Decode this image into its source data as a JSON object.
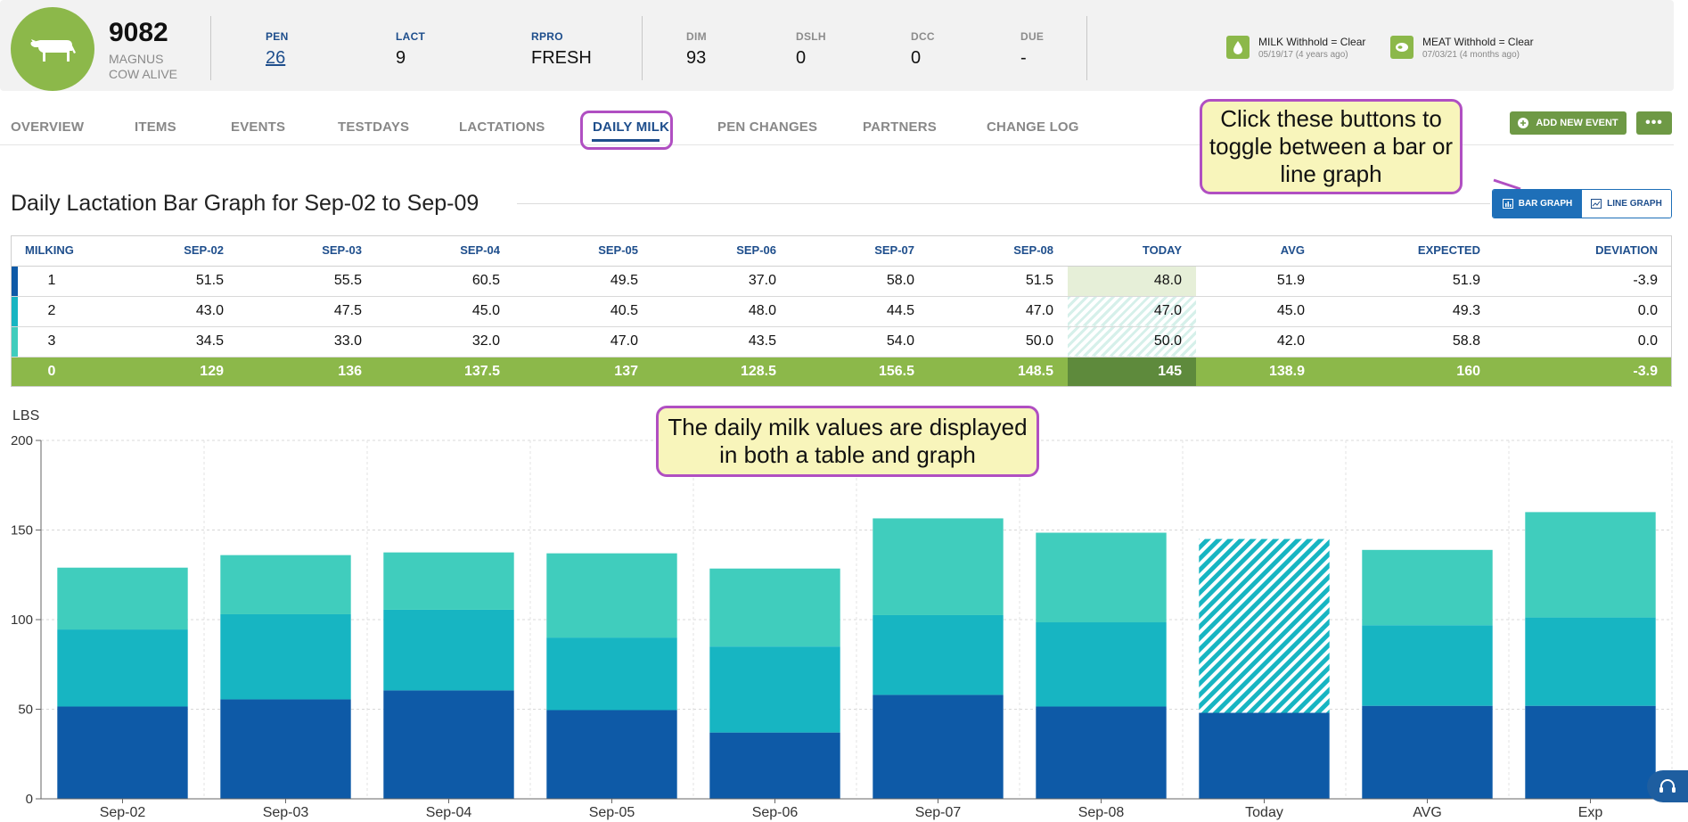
{
  "cow": {
    "id": "9082",
    "name": "MAGNUS",
    "status": "COW ALIVE",
    "icon": "cow-icon"
  },
  "stats": {
    "pen": {
      "label": "PEN",
      "value": "26"
    },
    "lact": {
      "label": "LACT",
      "value": "9"
    },
    "rpro": {
      "label": "RPRO",
      "value": "FRESH"
    },
    "dim": {
      "label": "DIM",
      "value": "93"
    },
    "dslh": {
      "label": "DSLH",
      "value": "0"
    },
    "dcc": {
      "label": "DCC",
      "value": "0"
    },
    "due": {
      "label": "DUE",
      "value": "-"
    }
  },
  "withhold": {
    "milk": {
      "title": "MILK Withhold = Clear",
      "sub": "05/19/17 (4 years ago)",
      "icon": "milk-drop-icon"
    },
    "meat": {
      "title": "MEAT Withhold = Clear",
      "sub": "07/03/21 (4 months ago)",
      "icon": "meat-icon"
    }
  },
  "tabs": [
    "OVERVIEW",
    "ITEMS",
    "EVENTS",
    "TESTDAYS",
    "LACTATIONS",
    "DAILY MILK",
    "PEN CHANGES",
    "PARTNERS",
    "CHANGE LOG"
  ],
  "active_tab": "DAILY MILK",
  "actions": {
    "add_event": "ADD NEW EVENT",
    "more": "•••"
  },
  "callouts": {
    "toggle": "Click these buttons to toggle between a bar or line graph",
    "table": "The daily milk values are displayed in both a table and graph"
  },
  "section_title": "Daily Lactation Bar Graph for Sep-02 to Sep-09",
  "toggle": {
    "bar": "BAR GRAPH",
    "line": "LINE GRAPH",
    "selected": "bar"
  },
  "table": {
    "headers": [
      "MILKING",
      "SEP-02",
      "SEP-03",
      "SEP-04",
      "SEP-05",
      "SEP-06",
      "SEP-07",
      "SEP-08",
      "TODAY",
      "AVG",
      "EXPECTED",
      "DEVIATION"
    ],
    "rows": [
      [
        "1",
        "51.5",
        "55.5",
        "60.5",
        "49.5",
        "37.0",
        "58.0",
        "51.5",
        "48.0",
        "51.9",
        "51.9",
        "-3.9"
      ],
      [
        "2",
        "43.0",
        "47.5",
        "45.0",
        "40.5",
        "48.0",
        "44.5",
        "47.0",
        "47.0",
        "45.0",
        "49.3",
        "0.0"
      ],
      [
        "3",
        "34.5",
        "33.0",
        "32.0",
        "47.0",
        "43.5",
        "54.0",
        "50.0",
        "50.0",
        "42.0",
        "58.8",
        "0.0"
      ]
    ],
    "total": [
      "0",
      "129",
      "136",
      "137.5",
      "137",
      "128.5",
      "156.5",
      "148.5",
      "145",
      "138.9",
      "160",
      "-3.9"
    ],
    "row_colors": [
      "#0e5aa7",
      "#17b5c2",
      "#40cdbd"
    ]
  },
  "chart_data": {
    "type": "bar",
    "stacked": true,
    "ylabel": "LBS",
    "ylim": [
      0,
      200
    ],
    "yticks": [
      0,
      50,
      100,
      150,
      200
    ],
    "grid": true,
    "categories": [
      "Sep-02",
      "Sep-03",
      "Sep-04",
      "Sep-05",
      "Sep-06",
      "Sep-07",
      "Sep-08",
      "Today",
      "AVG",
      "Exp"
    ],
    "series": [
      {
        "values": [
          51.5,
          55.5,
          60.5,
          49.5,
          37.0,
          58.0,
          51.5,
          48.0,
          51.9,
          51.9
        ],
        "color": "#0e5aa7"
      },
      {
        "values": [
          43.0,
          47.5,
          45.0,
          40.5,
          48.0,
          44.5,
          47.0,
          47.0,
          45.0,
          49.3
        ],
        "color": "#17b5c2"
      },
      {
        "values": [
          34.5,
          33.0,
          32.0,
          47.0,
          43.5,
          54.0,
          50.0,
          50.0,
          42.0,
          58.8
        ],
        "color": "#40cdbd"
      }
    ],
    "hatched_category": "Today"
  }
}
